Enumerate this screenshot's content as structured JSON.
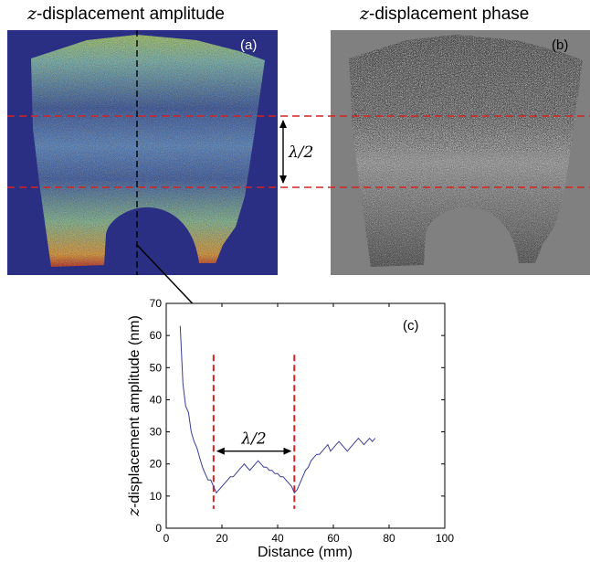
{
  "panels": {
    "a": {
      "title_var": "z",
      "title_text": "-displacement amplitude",
      "label": "(a)"
    },
    "b": {
      "title_var": "z",
      "title_text": "-displacement phase",
      "label": "(b)"
    }
  },
  "lambda_label": "λ/2",
  "colors": {
    "background_a": "#2b2f83",
    "background_b": "#808080",
    "dashed_red": "#d42222",
    "series_line": "#3b3b9a",
    "field_blue": "#2a5aa8",
    "field_green": "#8ccf6a",
    "field_red": "#b8221e"
  },
  "chart_data": {
    "type": "line",
    "label": "(c)",
    "xlabel": "Distance (mm)",
    "ylabel_var": "z",
    "ylabel_text": "-displacement amplitude (nm)",
    "xlim": [
      0,
      100
    ],
    "ylim": [
      0,
      70
    ],
    "xticks": [
      "0",
      "20",
      "40",
      "60",
      "80",
      "100"
    ],
    "yticks": [
      "0",
      "10",
      "20",
      "30",
      "40",
      "50",
      "60",
      "70"
    ],
    "xtick_values": [
      0,
      20,
      40,
      60,
      80,
      100
    ],
    "ytick_values": [
      0,
      10,
      20,
      30,
      40,
      50,
      60,
      70
    ],
    "grid": false,
    "marker_lines_x": [
      17,
      46
    ],
    "lambda_arrow_y": 24,
    "lambda_label": "λ/2",
    "series": [
      {
        "x": [
          5,
          6,
          7,
          8,
          9,
          10,
          11,
          12,
          13,
          14,
          15,
          16,
          17,
          18,
          19,
          20,
          21,
          22,
          23,
          24,
          25,
          26,
          27,
          28,
          29,
          30,
          31,
          32,
          33,
          34,
          35,
          36,
          37,
          38,
          39,
          40,
          41,
          42,
          43,
          44,
          45,
          46,
          47,
          48,
          49,
          50,
          51,
          52,
          53,
          54,
          55,
          56,
          57,
          58,
          59,
          60,
          61,
          62,
          63,
          64,
          65,
          66,
          67,
          68,
          69,
          70,
          71,
          72,
          73,
          74,
          75
        ],
        "y": [
          63,
          45,
          38,
          36,
          30,
          27,
          25,
          22,
          19,
          17,
          15,
          15,
          13,
          11,
          12,
          13,
          14,
          15,
          16,
          16,
          17,
          18,
          19,
          20,
          19,
          18,
          19,
          20,
          21,
          20,
          19,
          19,
          18,
          18,
          17,
          17,
          16,
          16,
          15,
          14,
          13,
          11,
          12,
          14,
          16,
          18,
          19,
          21,
          22,
          23,
          23,
          24,
          25,
          26,
          24,
          25,
          26,
          27,
          26,
          25,
          24,
          25,
          26,
          27,
          28,
          27,
          26,
          27,
          28,
          27,
          28
        ]
      }
    ]
  }
}
